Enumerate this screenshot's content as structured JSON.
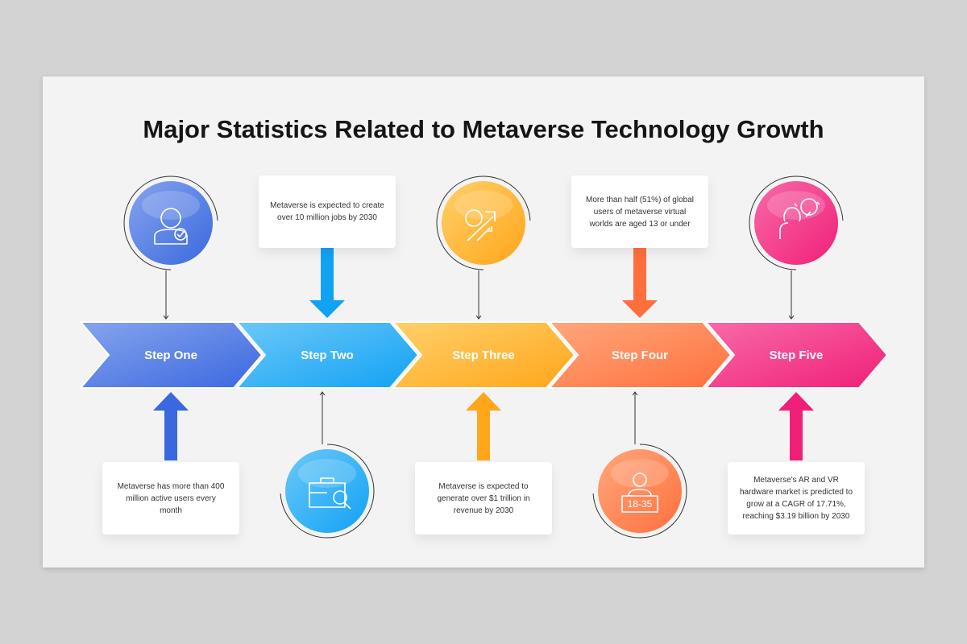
{
  "title": "Major Statistics Related to Metaverse Technology Growth",
  "steps": [
    {
      "label": "Step One",
      "text": "Metaverse has more than 400 million active users every month"
    },
    {
      "label": "Step Two",
      "text": "Metaverse is expected to create over 10 million jobs by 2030"
    },
    {
      "label": "Step Three",
      "text": "Metaverse is expected to generate over $1 trillion in revenue by 2030"
    },
    {
      "label": "Step Four",
      "text": "More than half (51%) of global users of metaverse virtual worlds are aged 13 or under",
      "icon_text": "18-35"
    },
    {
      "label": "Step Five",
      "text": "Metaverse's AR and VR hardware market is predicted to grow at a CAGR of 17.71%, reaching $3.19 billion by 2030"
    }
  ]
}
